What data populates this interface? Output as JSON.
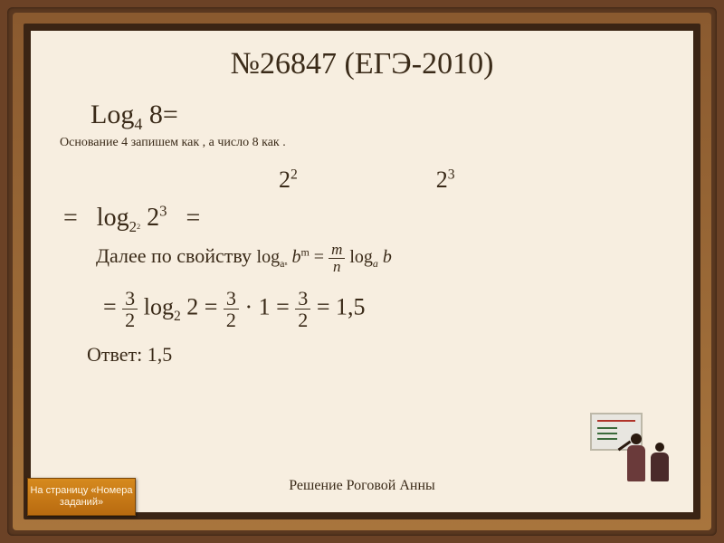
{
  "slide": {
    "title": "№26847 (ЕГЭ-2010)",
    "line1_html": "Log<sub>4</sub> 8=",
    "sub_note": "Основание 4 запишем как   , а число 8 как    .",
    "pow1_html": "2<sup>2</sup>",
    "pow2_html": "2<sup>3</sup>",
    "log_step_html": "= &nbsp; <span class='log-frag'>log<sub>2<span class='subsub'>2</span></sub> 2<sup>3</sup></span> &nbsp; =",
    "prop_text": "Далее по свойству",
    "prop_formula_html": "log<sub>a<span class='subsub'>n</span></sub> <i>b</i><sup>m</sup> = <span class='frac'><span class='n'><i>m</i></span><span class='d'><i>n</i></span></span> log<sub><i>a</i></sub> <i>b</i>",
    "final_html": "= <span class='frac'><span class='n'>3</span><span class='d'>2</span></span> log<sub>2</sub> 2 = <span class='frac'><span class='n'>3</span><span class='d'>2</span></span> · 1 = <span class='frac'><span class='n'>3</span><span class='d'>2</span></span> = 1,5",
    "answer": "Ответ: 1,5",
    "credit": "Решение    Роговой Анны",
    "nav_button": "На страницу «Номера заданий»"
  },
  "style": {
    "bg_outer": "#6b4226",
    "bg_slide": "#f7eee0",
    "text_color": "#3a2a18",
    "button_bg": "#c77a16",
    "title_fontsize": 34,
    "body_fontsize": 26
  }
}
